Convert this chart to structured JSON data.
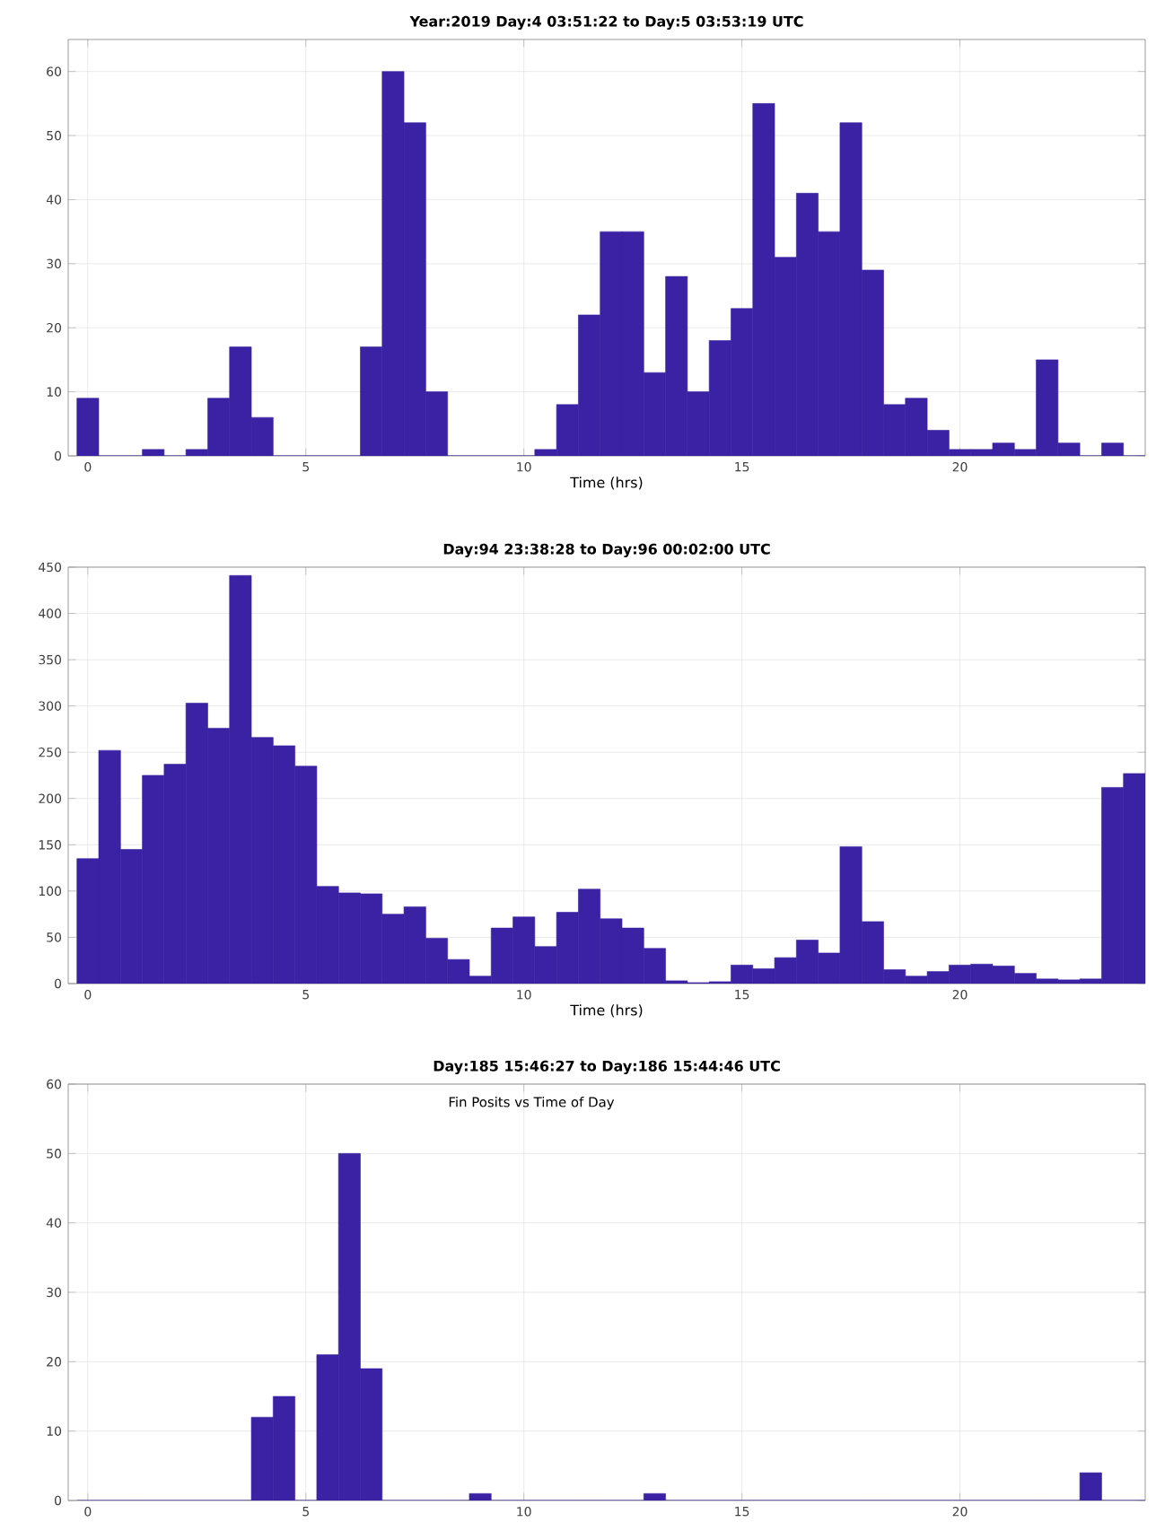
{
  "chart_data": [
    {
      "type": "histogram",
      "title": "Year:2019 Day:4 03:51:22 to Day:5 03:53:19 UTC",
      "xlabel": "Time (hrs)",
      "bins": [
        -0.25,
        0.25,
        0.75,
        1.25,
        1.75,
        2.25,
        2.75,
        3.25,
        3.75,
        4.25,
        4.75,
        5.25,
        5.75,
        6.25,
        6.75,
        7.25,
        7.75,
        8.25,
        8.75,
        9.25,
        9.75,
        10.25,
        10.75,
        11.25,
        11.75,
        12.25,
        12.75,
        13.25,
        13.75,
        14.25,
        14.75,
        15.25,
        15.75,
        16.25,
        16.75,
        17.25,
        17.75,
        18.25,
        18.75,
        19.25,
        19.75,
        20.25,
        20.75,
        21.25,
        21.75,
        22.25,
        22.75,
        23.25,
        23.75,
        24.25
      ],
      "values": [
        9,
        0,
        0,
        1,
        0,
        1,
        9,
        17,
        6,
        0,
        0,
        0,
        0,
        17,
        60,
        52,
        10,
        0,
        0,
        0,
        0,
        1,
        8,
        22,
        35,
        35,
        13,
        28,
        10,
        18,
        23,
        55,
        31,
        41,
        35,
        52,
        29,
        8,
        9,
        4,
        1,
        1,
        2,
        1,
        15,
        2,
        0,
        2,
        0
      ],
      "color": "#3b21a3",
      "xlim": [
        -0.45,
        24.25
      ],
      "ylim": [
        0,
        65
      ],
      "xticks": [
        0,
        5,
        10,
        15,
        20
      ],
      "yticks": [
        0,
        10,
        20,
        30,
        40,
        50,
        60
      ],
      "grid": true
    },
    {
      "type": "histogram",
      "title": "Day:94 23:38:28 to Day:96 00:02:00 UTC",
      "xlabel": "Time (hrs)",
      "bins": [
        -0.25,
        0.25,
        0.75,
        1.25,
        1.75,
        2.25,
        2.75,
        3.25,
        3.75,
        4.25,
        4.75,
        5.25,
        5.75,
        6.25,
        6.75,
        7.25,
        7.75,
        8.25,
        8.75,
        9.25,
        9.75,
        10.25,
        10.75,
        11.25,
        11.75,
        12.25,
        12.75,
        13.25,
        13.75,
        14.25,
        14.75,
        15.25,
        15.75,
        16.25,
        16.75,
        17.25,
        17.75,
        18.25,
        18.75,
        19.25,
        19.75,
        20.25,
        20.75,
        21.25,
        21.75,
        22.25,
        22.75,
        23.25,
        23.75,
        24.25
      ],
      "values": [
        135,
        252,
        145,
        225,
        237,
        303,
        276,
        441,
        266,
        257,
        235,
        105,
        98,
        97,
        75,
        83,
        49,
        26,
        8,
        60,
        72,
        40,
        77,
        102,
        70,
        60,
        38,
        3,
        1,
        2,
        20,
        16,
        28,
        47,
        33,
        148,
        67,
        15,
        8,
        13,
        20,
        21,
        19,
        11,
        5,
        4,
        5,
        212,
        227
      ],
      "color": "#3b21a3",
      "xlim": [
        -0.45,
        24.25
      ],
      "ylim": [
        0,
        450
      ],
      "xticks": [
        0,
        5,
        10,
        15,
        20
      ],
      "yticks": [
        0,
        50,
        100,
        150,
        200,
        250,
        300,
        350,
        400,
        450
      ],
      "grid": true
    },
    {
      "type": "histogram",
      "title": "Day:185 15:46:27 to Day:186 15:44:46 UTC",
      "annotations": [
        "Fin Posits vs Time of Day"
      ],
      "bins": [
        -0.25,
        0.25,
        0.75,
        1.25,
        1.75,
        2.25,
        2.75,
        3.25,
        3.75,
        4.25,
        4.75,
        5.25,
        5.75,
        6.25,
        6.75,
        7.25,
        7.75,
        8.25,
        8.75,
        9.25,
        9.75,
        10.25,
        10.75,
        11.25,
        11.75,
        12.25,
        12.75,
        13.25,
        13.75,
        14.25,
        14.75,
        15.25,
        15.75,
        16.25,
        16.75,
        17.25,
        17.75,
        18.25,
        18.75,
        19.25,
        19.75,
        20.25,
        20.75,
        21.25,
        21.75,
        22.25,
        22.75,
        23.25,
        23.75,
        24.25
      ],
      "values": [
        0,
        0,
        0,
        0,
        0,
        0,
        0,
        0,
        12,
        15,
        0,
        21,
        50,
        19,
        0,
        0,
        0,
        0,
        1,
        0,
        0,
        0,
        0,
        0,
        0,
        0,
        1,
        0,
        0,
        0,
        0,
        0,
        0,
        0,
        0,
        0,
        0,
        0,
        0,
        0,
        0,
        0,
        0,
        0,
        0,
        0,
        4,
        0,
        0
      ],
      "color": "#3b21a3",
      "xlim": [
        -0.45,
        24.25
      ],
      "ylim": [
        0,
        60
      ],
      "xticks": [
        0,
        5,
        10,
        15,
        20
      ],
      "yticks": [
        0,
        10,
        20,
        30,
        40,
        50,
        60
      ],
      "grid": true
    }
  ]
}
